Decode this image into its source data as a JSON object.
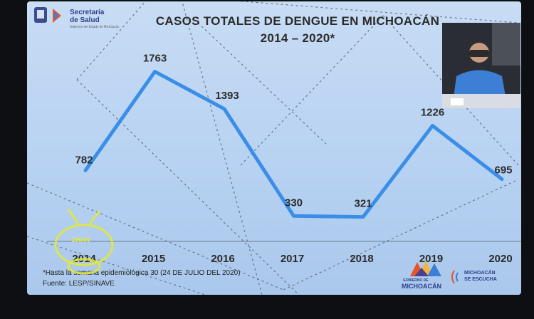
{
  "header": {
    "agency_line1": "Secretaría",
    "agency_line2": "de Salud",
    "agency_sub": "Gobierno del Estado de Michoacán"
  },
  "chart_data": {
    "type": "line",
    "title": "CASOS TOTALES DE DENGUE EN MICHOACÁN",
    "subtitle": "2014 – 2020*",
    "xlabel": "",
    "ylabel": "",
    "categories": [
      "2014",
      "2015",
      "2016",
      "2017",
      "2018",
      "2019",
      "2020"
    ],
    "values": [
      782,
      1763,
      1393,
      330,
      321,
      1226,
      695
    ],
    "ylim": [
      0,
      2000
    ],
    "grid": false,
    "legend": "none",
    "line_color": "#3a8ee8"
  },
  "footnotes": {
    "note": "*Hasta la semana epidemiológica 30 (24 DE JULIO DEL 2020)",
    "source": "Fuente: LESP/SINAVE"
  },
  "branding": {
    "state_logo_line1": "GOBIERNO DE",
    "state_logo_line2": "MICHOACÁN",
    "slogan_line1": "MICHOACÁN",
    "slogan_line2": "SE ESCUCHA"
  },
  "watermark": {
    "text": "CHAN"
  },
  "colors": {
    "background": "#b7d2f2",
    "line": "#3a8ee8",
    "text": "#2b2b2b"
  }
}
